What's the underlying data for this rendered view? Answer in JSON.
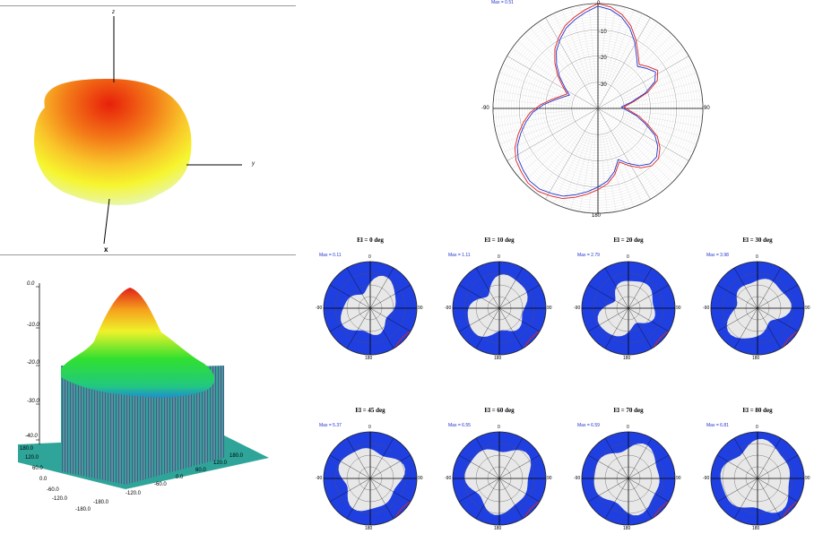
{
  "top_left": {
    "axis_z": "z",
    "axis_y": "y",
    "axis_x": "x"
  },
  "bottom_left": {
    "z_ticks": [
      "0.0",
      "-10.0",
      "-20.0",
      "-30.0",
      "-40.0"
    ],
    "x_ticks": [
      "180.0",
      "120.0",
      "60.0",
      "0.0",
      "-60.0",
      "-120.0",
      "-180.0"
    ],
    "y_ticks": [
      "180.0",
      "120.0",
      "60.0",
      "0.0",
      "-60.0",
      "-120.0",
      "-180.0"
    ]
  },
  "main_polar": {
    "max_label": "Max = 0.51",
    "top_label": "0",
    "left_label": "-90",
    "right_label": "90",
    "bottom_label": "180",
    "ring_labels": [
      "-10",
      "-20",
      "-30"
    ]
  },
  "chart_data": [
    {
      "type": "line",
      "polar": true,
      "series": [
        {
          "color": "#dd2222",
          "r_db": [
            0,
            -1,
            -3,
            -6,
            -10,
            -14,
            -17,
            -15,
            -13,
            -15,
            -20,
            -26,
            -30,
            -28,
            -24,
            -20,
            -15,
            -12,
            -10,
            -10,
            -12,
            -15,
            -18,
            -14,
            -11,
            -9,
            -7,
            -5,
            -3,
            -2,
            -1,
            -1,
            -2,
            -3,
            -5,
            -8,
            -11,
            -14,
            -18,
            -22,
            -25,
            -27,
            -24,
            -20,
            -16,
            -12,
            -9,
            -6,
            -4,
            -2
          ]
        },
        {
          "color": "#2233cc",
          "r_db": [
            -1,
            -2,
            -4,
            -7,
            -11,
            -15,
            -18,
            -16,
            -14,
            -16,
            -21,
            -27,
            -31,
            -29,
            -25,
            -21,
            -16,
            -13,
            -11,
            -11,
            -13,
            -16,
            -19,
            -15,
            -12,
            -10,
            -8,
            -6,
            -4,
            -3,
            -2,
            -2,
            -3,
            -4,
            -6,
            -9,
            -12,
            -15,
            -19,
            -23,
            -26,
            -28,
            -25,
            -21,
            -17,
            -13,
            -10,
            -7,
            -5,
            -3
          ]
        }
      ]
    }
  ],
  "small_polars": [
    {
      "title": "El =  0 deg",
      "max": "Max = 0.11"
    },
    {
      "title": "El = 10 deg",
      "max": "Max = 1.11"
    },
    {
      "title": "El = 20 deg",
      "max": "Max = 2.79"
    },
    {
      "title": "El = 30 deg",
      "max": "Max = 3.98"
    },
    {
      "title": "El = 45 deg",
      "max": "Max = 5.37"
    },
    {
      "title": "El = 60 deg",
      "max": "Max = 6.55"
    },
    {
      "title": "El = 70 deg",
      "max": "Max = 6.59"
    },
    {
      "title": "El = 80 deg",
      "max": "Max = 6.81"
    }
  ],
  "small_labels": {
    "top": "0",
    "left": "-90",
    "right": "90",
    "bottom": "180"
  },
  "colors": {
    "blue": "#1f3fe0",
    "red": "#dd2222",
    "grid": "#555555"
  }
}
